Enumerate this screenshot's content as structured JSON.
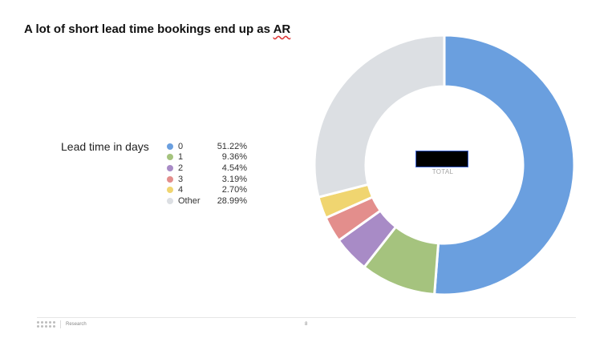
{
  "slide": {
    "title_main": "A lot of short lead time bookings end up as ",
    "title_em": "AR",
    "footer_section": "Research",
    "page_number": "8"
  },
  "chart_data": {
    "type": "donut",
    "legend_title": "Lead time in days",
    "legend_position": "left",
    "center_label": "TOTAL",
    "categories": [
      "0",
      "1",
      "2",
      "3",
      "4",
      "Other"
    ],
    "values": [
      51.22,
      9.36,
      4.54,
      3.19,
      2.7,
      28.99
    ],
    "value_labels": [
      "51.22%",
      "9.36%",
      "4.54%",
      "3.19%",
      "2.70%",
      "28.99%"
    ],
    "colors": [
      "#6a9fdf",
      "#a5c37e",
      "#a88bc6",
      "#e38e8c",
      "#f0d570",
      "#dcdfe3"
    ]
  }
}
